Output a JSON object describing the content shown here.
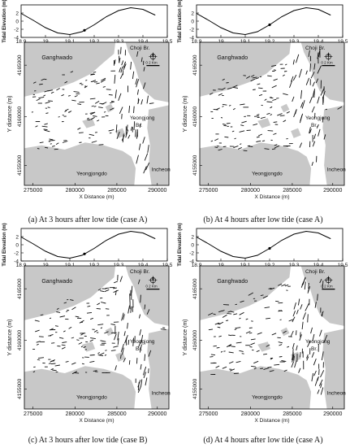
{
  "tide_plot": {
    "ylabel": "Tidal Elevation (m)",
    "xlabel": "Time (Days)",
    "x_ticks": [
      "18.9",
      "19",
      "19.1",
      "19.2",
      "19.3",
      "19.4",
      "19.5"
    ],
    "y_ticks": [
      "2",
      "0",
      "-2",
      "-4"
    ]
  },
  "map": {
    "xlabel": "X Distance (m)",
    "ylabel": "Y distance (m)",
    "x_ticks": [
      "275000",
      "280000",
      "285000",
      "290000"
    ],
    "y_ticks": [
      "4165000",
      "4160000",
      "4155000"
    ],
    "place_labels": {
      "ganghwado": "Ganghwado",
      "choji": "Choji Br.",
      "yeongjong_br_1": "Yeongjong",
      "yeongjong_br_2": "Br.",
      "yeongjongdo": "Yeongjongdo",
      "incheon": "Incheon"
    },
    "scale_label": "0   2 Km",
    "land_color": "#c8c8c8",
    "water_color": "#ffffff"
  },
  "captions": [
    "(a) At 3 hours after low tide (case A)",
    "(b) At 4 hours after low tide (case A)",
    "(c) At 3 hours after low tide (case B)",
    "(d) At 4 hours after low tide (case A)"
  ],
  "chart_data": [
    {
      "type": "line",
      "xlabel": "Time (Days)",
      "ylabel": "Tidal Elevation (m)",
      "xlim": [
        18.9,
        19.5
      ],
      "ylim": [
        -4,
        4
      ],
      "series": [
        {
          "x": [
            18.9,
            18.95,
            19.0,
            19.05,
            19.1,
            19.15,
            19.2,
            19.25,
            19.3,
            19.35,
            19.4,
            19.45
          ],
          "values": [
            1.9,
            0.2,
            -1.6,
            -2.9,
            -3.3,
            -2.6,
            -0.9,
            1.1,
            2.6,
            3.3,
            2.9,
            1.5
          ]
        }
      ],
      "marker_x": 19.16
    },
    {
      "type": "line",
      "xlabel": "Time (Days)",
      "ylabel": "Tidal Elevation (m)",
      "xlim": [
        18.9,
        19.5
      ],
      "ylim": [
        -4,
        4
      ],
      "series": [
        {
          "x": [
            18.9,
            18.95,
            19.0,
            19.05,
            19.1,
            19.15,
            19.2,
            19.25,
            19.3,
            19.35,
            19.4,
            19.45
          ],
          "values": [
            1.9,
            0.2,
            -1.6,
            -2.9,
            -3.3,
            -2.6,
            -0.9,
            1.1,
            2.6,
            3.3,
            2.9,
            1.5
          ]
        }
      ],
      "marker_x": 19.2
    },
    {
      "type": "line",
      "xlabel": "Time (Days)",
      "ylabel": "Tidal Elevation (m)",
      "xlim": [
        18.9,
        19.5
      ],
      "ylim": [
        -4,
        4
      ],
      "series": [
        {
          "x": [
            18.9,
            18.95,
            19.0,
            19.05,
            19.1,
            19.15,
            19.2,
            19.25,
            19.3,
            19.35,
            19.4,
            19.45
          ],
          "values": [
            1.9,
            0.2,
            -1.6,
            -2.9,
            -3.3,
            -2.6,
            -0.9,
            1.1,
            2.6,
            3.3,
            2.9,
            1.5
          ]
        }
      ],
      "marker_x": 19.16
    },
    {
      "type": "line",
      "xlabel": "Time (Days)",
      "ylabel": "Tidal Elevation (m)",
      "xlim": [
        18.9,
        19.5
      ],
      "ylim": [
        -4,
        4
      ],
      "series": [
        {
          "x": [
            18.9,
            18.95,
            19.0,
            19.05,
            19.1,
            19.15,
            19.2,
            19.25,
            19.3,
            19.35,
            19.4,
            19.45
          ],
          "values": [
            1.9,
            0.2,
            -1.6,
            -2.9,
            -3.3,
            -2.6,
            -0.9,
            1.1,
            2.6,
            3.3,
            2.9,
            1.5
          ]
        }
      ],
      "marker_x": 19.2
    }
  ]
}
